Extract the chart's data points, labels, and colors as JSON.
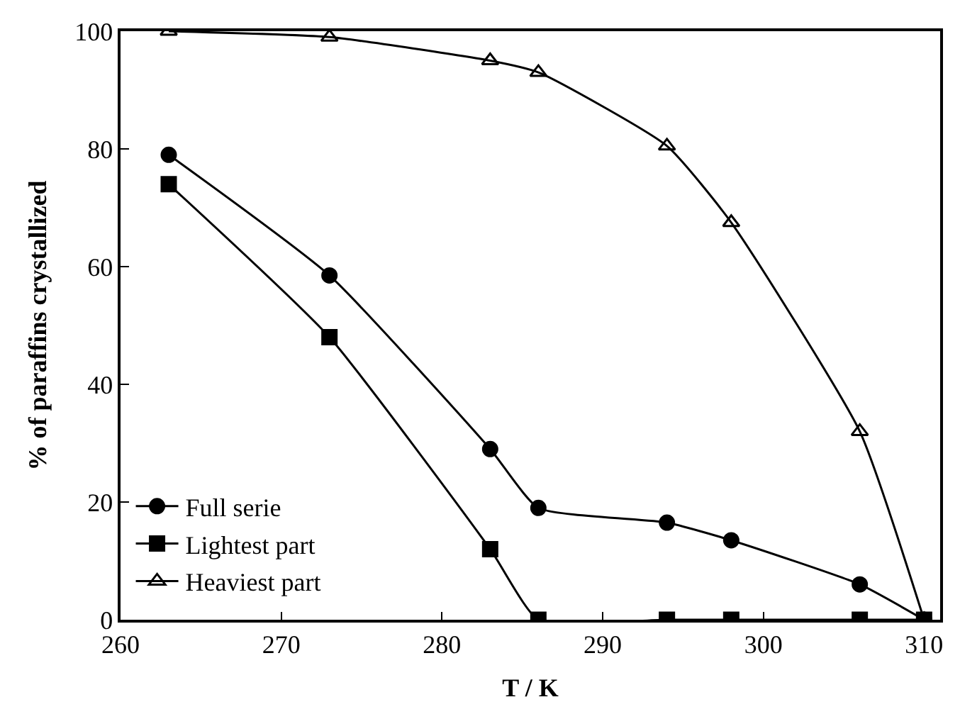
{
  "chart_data": {
    "type": "line",
    "xlabel": "T / K",
    "ylabel": "% of paraffins crystallized",
    "x": [
      263,
      273,
      283,
      286,
      294,
      298,
      306,
      310
    ],
    "series": [
      {
        "name": "Full serie",
        "color": "#000000",
        "marker": "circle",
        "values": [
          79,
          58.5,
          29,
          19,
          16.5,
          13.5,
          6,
          0
        ]
      },
      {
        "name": "Lightest part",
        "color": "#000000",
        "marker": "square",
        "values": [
          74,
          48,
          12,
          0,
          0,
          0,
          0,
          0
        ]
      },
      {
        "name": "Heaviest part",
        "color": "#000000",
        "marker": "triangle",
        "values": [
          100,
          99,
          95,
          93,
          80.5,
          67.5,
          32,
          0
        ]
      }
    ],
    "xlim": [
      260,
      311
    ],
    "xticks": [
      260,
      270,
      280,
      290,
      300,
      310
    ],
    "ylim": [
      0,
      100
    ],
    "yticks": [
      0,
      20,
      40,
      60,
      80,
      100
    ],
    "legend": "bottom left",
    "line_style": "solid"
  }
}
